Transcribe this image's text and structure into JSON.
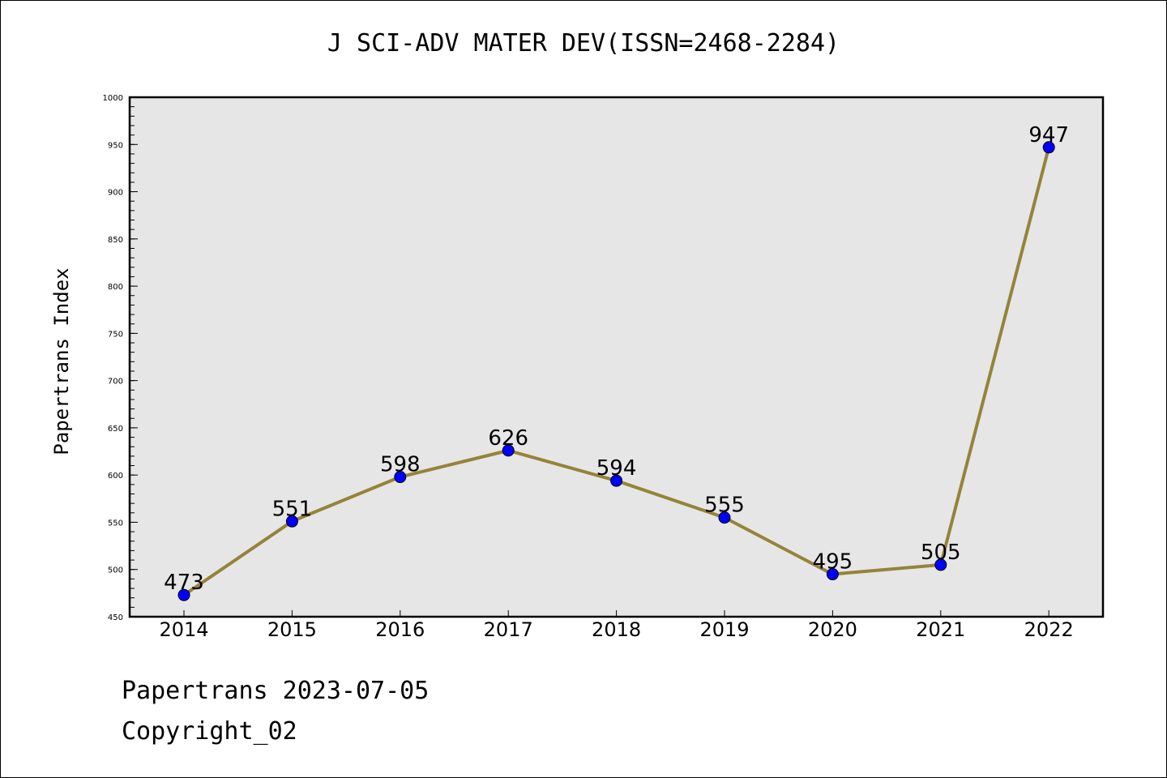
{
  "chart_data": {
    "type": "line",
    "title": "J SCI-ADV MATER DEV(ISSN=2468-2284)",
    "xlabel": "",
    "ylabel": "Papertrans Index",
    "categories": [
      "2014",
      "2015",
      "2016",
      "2017",
      "2018",
      "2019",
      "2020",
      "2021",
      "2022"
    ],
    "series": [
      {
        "values": [
          473,
          551,
          598,
          626,
          594,
          555,
          495,
          505,
          947
        ]
      }
    ],
    "ylim": [
      450,
      1000
    ],
    "yticks": [
      450,
      500,
      550,
      600,
      650,
      700,
      750,
      800,
      850,
      900,
      950,
      1000
    ],
    "grid": false,
    "line_color": "#948439",
    "marker_color": "#0000ff",
    "plot_background": "#e6e6e6"
  },
  "footer": {
    "line1": "Papertrans 2023-07-05",
    "line2": "Copyright_02"
  }
}
